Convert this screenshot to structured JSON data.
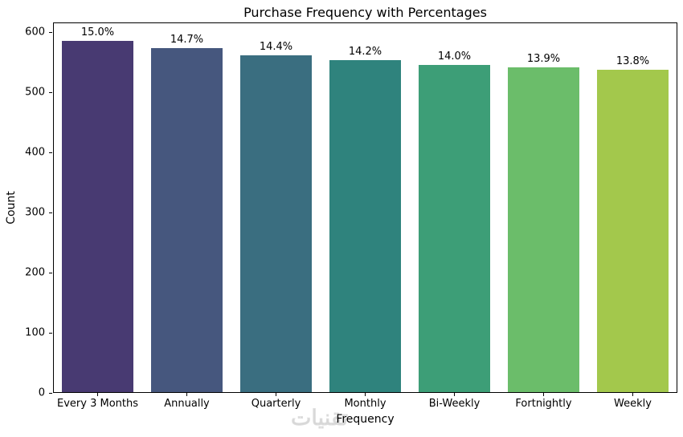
{
  "title": "Purchase Frequency with Percentages",
  "watermark_text": "تقنيات",
  "chart_data": {
    "type": "bar",
    "title": "Purchase Frequency with Percentages",
    "xlabel": "Frequency",
    "ylabel": "Count",
    "categories": [
      "Every 3 Months",
      "Annually",
      "Quarterly",
      "Monthly",
      "Bi-Weekly",
      "Fortnightly",
      "Weekly"
    ],
    "values": [
      585,
      573,
      562,
      554,
      546,
      542,
      538
    ],
    "bar_labels": [
      "15.0%",
      "14.7%",
      "14.4%",
      "14.2%",
      "14.0%",
      "13.9%",
      "13.8%"
    ],
    "colors": [
      "#483a72",
      "#46577e",
      "#3a6e80",
      "#2f837d",
      "#3d9e77",
      "#6bbd6a",
      "#a3c84c"
    ],
    "ylim": [
      0,
      616
    ],
    "yticks": [
      0,
      100,
      200,
      300,
      400,
      500,
      600
    ],
    "grid": false,
    "legend": false,
    "bar_width_fraction": 0.8
  }
}
